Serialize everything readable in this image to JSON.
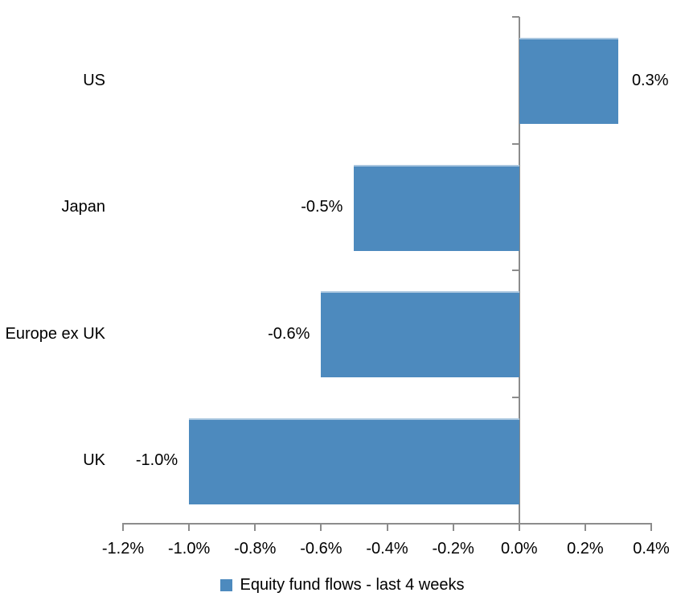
{
  "chart_data": {
    "type": "bar",
    "orientation": "horizontal",
    "title": "",
    "xlabel": "",
    "ylabel": "",
    "categories": [
      "US",
      "Japan",
      "Europe ex UK",
      "UK"
    ],
    "values": [
      0.3,
      -0.5,
      -0.6,
      -1.0
    ],
    "value_labels": [
      "0.3%",
      "-0.5%",
      "-0.6%",
      "-1.0%"
    ],
    "series": [
      {
        "name": "Equity fund flows - last 4 weeks",
        "values": [
          0.3,
          -0.5,
          -0.6,
          -1.0
        ]
      }
    ],
    "xlim": [
      -1.2,
      0.4
    ],
    "x_ticks": [
      -1.2,
      -1.0,
      -0.8,
      -0.6,
      -0.4,
      -0.2,
      0.0,
      0.2,
      0.4
    ],
    "x_tick_labels": [
      "-1.2%",
      "-1.0%",
      "-0.8%",
      "-0.6%",
      "-0.4%",
      "-0.2%",
      "0.0%",
      "0.2%",
      "0.4%"
    ],
    "grid": false,
    "legend": {
      "position": "bottom-center",
      "label": "Equity fund flows - last 4 weeks"
    },
    "colors": {
      "bar": "#4D8ABE",
      "bar_top_edge": "#A9C6DF",
      "axis": "#8C8C8C",
      "text": "#000000",
      "background": "#FFFFFF"
    }
  }
}
